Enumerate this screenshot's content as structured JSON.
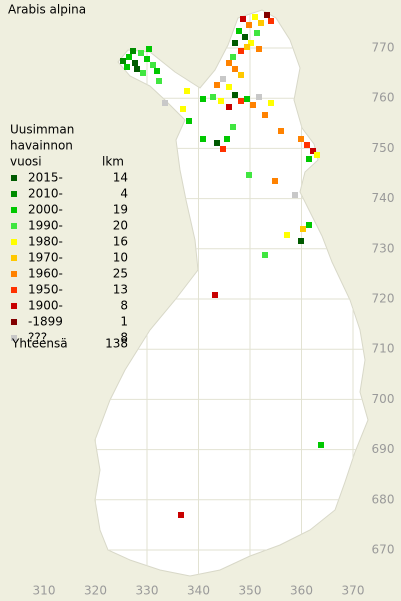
{
  "title": "Arabis alpina",
  "legend": {
    "heading": [
      "Uusimman",
      "havainnon",
      "vuosi"
    ],
    "count_heading": "lkm",
    "entries": [
      {
        "label": "2015-",
        "count": 14,
        "color": "#005a00"
      },
      {
        "label": "2010-",
        "count": 4,
        "color": "#008c00"
      },
      {
        "label": "2000-",
        "count": 19,
        "color": "#00c800"
      },
      {
        "label": "1990-",
        "count": 20,
        "color": "#40e640"
      },
      {
        "label": "1980-",
        "count": 16,
        "color": "#ffff00"
      },
      {
        "label": "1970-",
        "count": 10,
        "color": "#ffc800"
      },
      {
        "label": "1960-",
        "count": 25,
        "color": "#ff8200"
      },
      {
        "label": "1950-",
        "count": 13,
        "color": "#ff3200"
      },
      {
        "label": "1900-",
        "count": 8,
        "color": "#c80000"
      },
      {
        "label": "-1899",
        "count": 1,
        "color": "#820000"
      },
      {
        "label": "???",
        "count": 8,
        "color": "#c8c8c8"
      }
    ],
    "total_label": "Yhteensä",
    "total": 138
  },
  "x_axis": [
    310,
    320,
    330,
    340,
    350,
    360,
    370
  ],
  "y_axis": [
    770,
    760,
    750,
    740,
    730,
    720,
    710,
    700,
    690,
    680,
    670
  ]
}
